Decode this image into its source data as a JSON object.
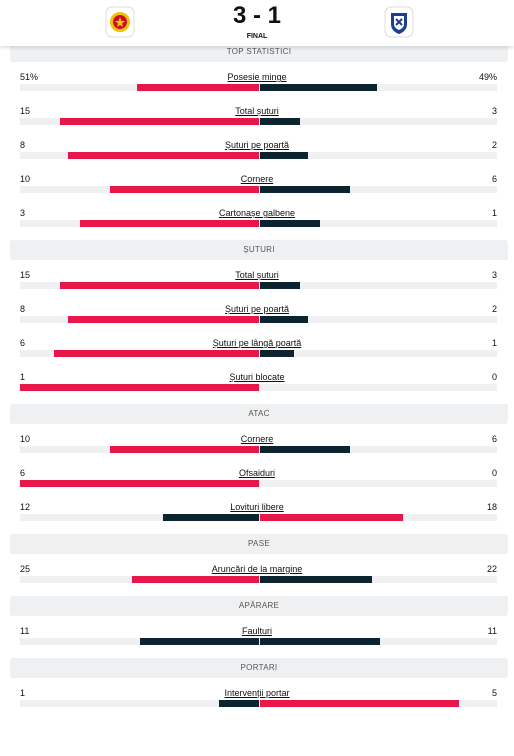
{
  "header": {
    "score": "3 - 1",
    "status": "FINAL"
  },
  "sections": [
    {
      "title": "TOP STATISTICI",
      "rows": [
        {
          "label": "Posesie minge",
          "home": "51%",
          "away": "49%"
        },
        {
          "label": "Total șuturi",
          "home": "15",
          "away": "3"
        },
        {
          "label": "Șuturi pe poartă",
          "home": "8",
          "away": "2"
        },
        {
          "label": "Cornere",
          "home": "10",
          "away": "6"
        },
        {
          "label": "Cartonașe galbene",
          "home": "3",
          "away": "1"
        }
      ]
    },
    {
      "title": "ȘUTURI",
      "rows": [
        {
          "label": "Total șuturi",
          "home": "15",
          "away": "3"
        },
        {
          "label": "Șuturi pe poartă",
          "home": "8",
          "away": "2"
        },
        {
          "label": "Șuturi pe lângă poartă",
          "home": "6",
          "away": "1"
        },
        {
          "label": "Șuturi blocate",
          "home": "1",
          "away": "0"
        }
      ]
    },
    {
      "title": "ATAC",
      "rows": [
        {
          "label": "Cornere",
          "home": "10",
          "away": "6"
        },
        {
          "label": "Ofsaiduri",
          "home": "6",
          "away": "0"
        },
        {
          "label": "Lovituri libere",
          "home": "12",
          "away": "18"
        }
      ]
    },
    {
      "title": "PASE",
      "rows": [
        {
          "label": "Aruncări de la margine",
          "home": "25",
          "away": "22"
        }
      ]
    },
    {
      "title": "APĂRARE",
      "rows": [
        {
          "label": "Faulturi",
          "home": "11",
          "away": "11"
        }
      ]
    },
    {
      "title": "PORTARI",
      "rows": [
        {
          "label": "Intervenții portar",
          "home": "1",
          "away": "5"
        }
      ]
    }
  ]
}
